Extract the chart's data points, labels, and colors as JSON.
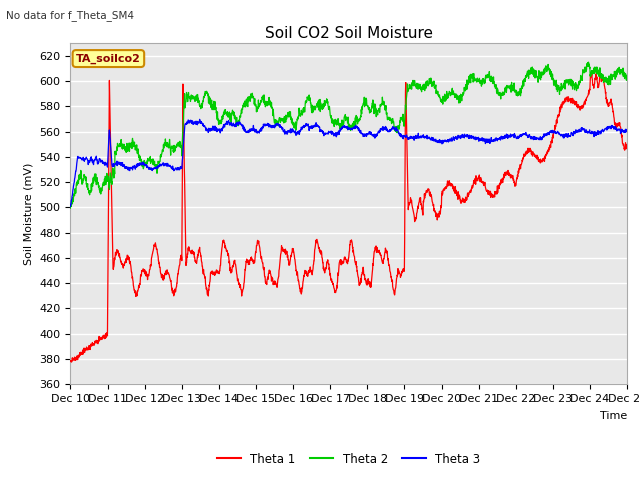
{
  "title": "Soil CO2 Soil Moisture",
  "subtitle": "No data for f_Theta_SM4",
  "ylabel": "Soil Moisture (mV)",
  "xlabel": "Time",
  "ylim": [
    360,
    630
  ],
  "annotation_text": "TA_soilco2",
  "legend_labels": [
    "Theta 1",
    "Theta 2",
    "Theta 3"
  ],
  "legend_colors": [
    "#ff0000",
    "#00cc00",
    "#0000ff"
  ],
  "xtick_labels": [
    "Dec 10",
    "Dec 11",
    "Dec 12",
    "Dec 13",
    "Dec 14",
    "Dec 15",
    "Dec 16",
    "Dec 17",
    "Dec 18",
    "Dec 19",
    "Dec 20",
    "Dec 21",
    "Dec 22",
    "Dec 23",
    "Dec 24",
    "Dec 25"
  ],
  "plot_bg_color": "#e8e8e8",
  "grid_color": "#ffffff",
  "title_fontsize": 11,
  "axis_fontsize": 8,
  "ylabel_fontsize": 8
}
